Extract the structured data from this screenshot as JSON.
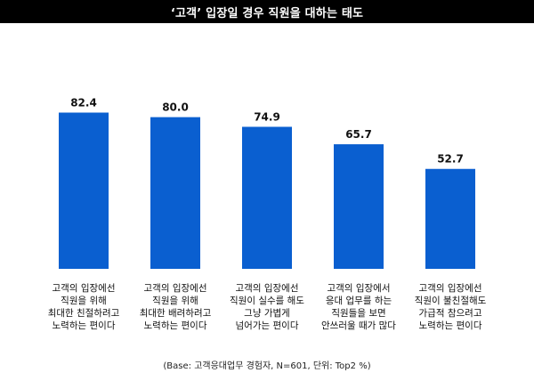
{
  "chart_data": {
    "type": "bar",
    "title": "‘고객’ 입장일 경우 직원을 대하는 태도",
    "categories": [
      "고객의 입장에선\n직원을 위해\n최대한 친절하려고\n노력하는 편이다",
      "고객의 입장에선\n직원을 위해\n최대한 배려하려고\n노력하는 편이다",
      "고객의 입장에선\n직원이 실수를 해도\n그냥 가볍게\n넘어가는 편이다",
      "고객의 입장에서\n응대 업무를 하는\n직원들을 보면\n안쓰러울 때가 많다",
      "고객의 입장에선\n직원이 불친절해도\n가급적 참으려고\n노력하는 편이다"
    ],
    "values": [
      82.4,
      80.0,
      74.9,
      65.7,
      52.7
    ],
    "value_labels": [
      "82.4",
      "80.0",
      "74.9",
      "65.7",
      "52.7"
    ],
    "ylim": [
      0,
      100
    ],
    "grid": false,
    "bar_color": "#0A5FD0",
    "footnote": "(Base: 고객응대업무 경험자, N=601, 단위: Top2 %)"
  }
}
